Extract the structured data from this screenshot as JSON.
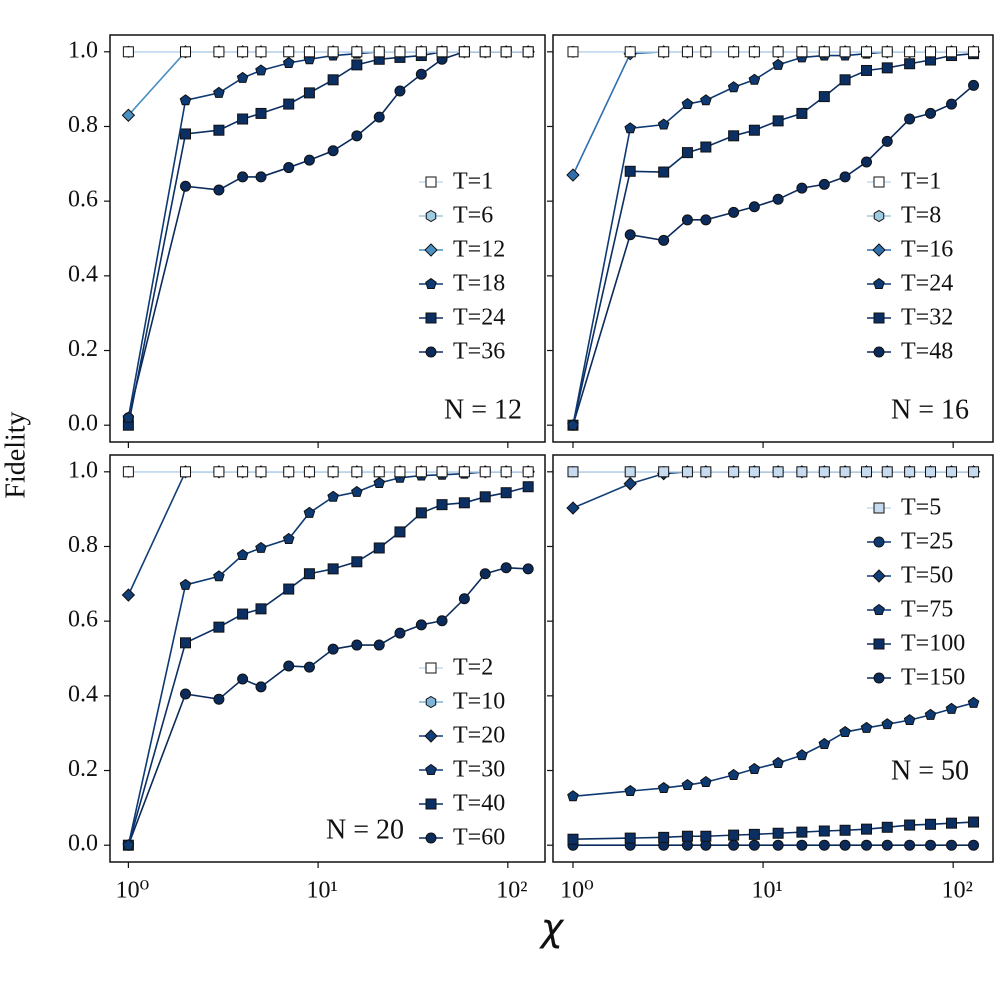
{
  "ylabel": "Fidelity",
  "xlabel": "χ",
  "chart_data": [
    {
      "type": "line",
      "annotation": "N = 12",
      "legend": "center right",
      "xscale": "log",
      "x": [
        1,
        2,
        3,
        4,
        5,
        7,
        9,
        12,
        16,
        21,
        27,
        35,
        45,
        59,
        76,
        98,
        128
      ],
      "xlim": [
        0.8,
        157
      ],
      "xticks": [
        1,
        10,
        100
      ],
      "ylim": [
        -0.045,
        1.045
      ],
      "yticks": [
        {
          "value": 0,
          "label": "0.0"
        },
        {
          "value": 0.2,
          "label": "0.2"
        },
        {
          "value": 0.4,
          "label": "0.4"
        },
        {
          "value": 0.6,
          "label": "0.6"
        },
        {
          "value": 0.8,
          "label": "0.8"
        },
        {
          "value": 1,
          "label": "1.0"
        }
      ],
      "series": [
        {
          "name": "T=1",
          "color": "#c6dbef",
          "markerfacecolor": "#ffffff",
          "marker": "square",
          "values": [
            1,
            1,
            1,
            1,
            1,
            1,
            1,
            1,
            1,
            1,
            1,
            1,
            1,
            1,
            1,
            1,
            1
          ]
        },
        {
          "name": "T=6",
          "color": "#9ecae1",
          "marker": "hexagon",
          "values": [
            1,
            1,
            1,
            1,
            1,
            1,
            1,
            1,
            1,
            1,
            1,
            1,
            1,
            1,
            1,
            1,
            1
          ]
        },
        {
          "name": "T=12",
          "color": "#4a90c2",
          "marker": "diamond",
          "values": [
            0.83,
            1,
            1,
            1,
            1,
            1,
            1,
            1,
            1,
            1,
            1,
            1,
            1,
            1,
            1,
            1,
            1
          ]
        },
        {
          "name": "T=18",
          "color": "#0e3a73",
          "marker": "pentagon",
          "values": [
            0.02,
            0.87,
            0.89,
            0.93,
            0.95,
            0.97,
            0.98,
            0.99,
            0.995,
            1,
            1,
            1,
            1,
            1,
            1,
            1,
            1
          ]
        },
        {
          "name": "T=24",
          "color": "#0b2f63",
          "marker": "square",
          "values": [
            0,
            0.78,
            0.79,
            0.82,
            0.835,
            0.86,
            0.89,
            0.925,
            0.965,
            0.98,
            0.985,
            0.99,
            1,
            1,
            1,
            1,
            1
          ]
        },
        {
          "name": "T=36",
          "color": "#0a2b5c",
          "marker": "circle",
          "values": [
            0.02,
            0.64,
            0.63,
            0.665,
            0.665,
            0.69,
            0.71,
            0.735,
            0.775,
            0.825,
            0.895,
            0.94,
            0.98,
            1,
            1,
            1,
            1
          ]
        }
      ]
    },
    {
      "type": "line",
      "annotation": "N = 16",
      "legend": "center right",
      "xscale": "log",
      "x": [
        1,
        2,
        3,
        4,
        5,
        7,
        9,
        12,
        16,
        21,
        27,
        35,
        45,
        59,
        76,
        98,
        128
      ],
      "xlim": [
        0.785,
        162
      ],
      "xticks": [
        1,
        10,
        100
      ],
      "ylim": [
        -0.045,
        1.045
      ],
      "yticks": [
        0,
        0.2,
        0.4,
        0.6,
        0.8,
        1
      ],
      "series": [
        {
          "name": "T=1",
          "color": "#c6dbef",
          "markerfacecolor": "#ffffff",
          "marker": "square",
          "values": [
            1,
            1,
            1,
            1,
            1,
            1,
            1,
            1,
            1,
            1,
            1,
            1,
            1,
            1,
            1,
            1,
            1
          ]
        },
        {
          "name": "T=8",
          "color": "#9ecae1",
          "marker": "hexagon",
          "values": [
            1,
            1,
            1,
            1,
            1,
            1,
            1,
            1,
            1,
            1,
            1,
            1,
            1,
            1,
            1,
            1,
            1
          ]
        },
        {
          "name": "T=16",
          "color": "#2f6fae",
          "marker": "diamond",
          "values": [
            0.67,
            0.995,
            1,
            1,
            1,
            1,
            1,
            1,
            1,
            1,
            1,
            1,
            1,
            1,
            1,
            1,
            1
          ]
        },
        {
          "name": "T=24",
          "color": "#0e3a73",
          "marker": "pentagon",
          "values": [
            0,
            0.795,
            0.805,
            0.86,
            0.87,
            0.905,
            0.925,
            0.965,
            0.985,
            0.99,
            0.99,
            0.995,
            1,
            1,
            1,
            1,
            1
          ]
        },
        {
          "name": "T=32",
          "color": "#0b2f63",
          "marker": "square",
          "values": [
            0,
            0.68,
            0.678,
            0.73,
            0.745,
            0.775,
            0.79,
            0.815,
            0.835,
            0.88,
            0.925,
            0.95,
            0.957,
            0.968,
            0.978,
            0.99,
            0.995
          ]
        },
        {
          "name": "T=48",
          "color": "#0a2b5c",
          "marker": "circle",
          "values": [
            0,
            0.51,
            0.495,
            0.55,
            0.55,
            0.57,
            0.585,
            0.605,
            0.635,
            0.645,
            0.665,
            0.705,
            0.76,
            0.82,
            0.835,
            0.86,
            0.91
          ]
        }
      ]
    },
    {
      "type": "line",
      "annotation": "N = 20",
      "legend": "lower right",
      "xscale": "log",
      "x": [
        1,
        2,
        3,
        4,
        5,
        7,
        9,
        12,
        16,
        21,
        27,
        35,
        45,
        59,
        76,
        98,
        128
      ],
      "xlim": [
        0.8,
        157
      ],
      "xticks": [
        {
          "value": 1,
          "label": "10⁰"
        },
        {
          "value": 10,
          "label": "10¹"
        },
        {
          "value": 100,
          "label": "10²"
        }
      ],
      "ylim": [
        -0.045,
        1.045
      ],
      "yticks": [
        {
          "value": 0,
          "label": "0.0"
        },
        {
          "value": 0.2,
          "label": "0.2"
        },
        {
          "value": 0.4,
          "label": "0.4"
        },
        {
          "value": 0.6,
          "label": "0.6"
        },
        {
          "value": 0.8,
          "label": "0.8"
        },
        {
          "value": 1,
          "label": "1.0"
        }
      ],
      "series": [
        {
          "name": "T=2",
          "color": "#c6dbef",
          "markerfacecolor": "#ffffff",
          "marker": "square",
          "values": [
            1,
            1,
            1,
            1,
            1,
            1,
            1,
            1,
            1,
            1,
            1,
            1,
            1,
            1,
            1,
            1,
            1
          ]
        },
        {
          "name": "T=10",
          "color": "#7fb3d8",
          "marker": "hexagon",
          "values": [
            1,
            1,
            1,
            1,
            1,
            1,
            1,
            1,
            1,
            1,
            1,
            1,
            1,
            1,
            1,
            1,
            1
          ]
        },
        {
          "name": "T=20",
          "color": "#123f78",
          "marker": "diamond",
          "values": [
            0.67,
            1,
            1,
            1,
            1,
            1,
            1,
            1,
            1,
            1,
            1,
            1,
            1,
            1,
            1,
            1,
            1
          ]
        },
        {
          "name": "T=30",
          "color": "#0e3a73",
          "marker": "pentagon",
          "values": [
            0,
            0.697,
            0.72,
            0.777,
            0.796,
            0.82,
            0.89,
            0.933,
            0.946,
            0.97,
            0.984,
            0.99,
            0.992,
            0.995,
            1,
            1,
            1
          ]
        },
        {
          "name": "T=40",
          "color": "#0b2f63",
          "marker": "square",
          "values": [
            0,
            0.542,
            0.584,
            0.619,
            0.633,
            0.686,
            0.727,
            0.74,
            0.759,
            0.796,
            0.839,
            0.89,
            0.912,
            0.917,
            0.933,
            0.944,
            0.96
          ]
        },
        {
          "name": "T=60",
          "color": "#0a2b5c",
          "marker": "circle",
          "values": [
            0,
            0.405,
            0.391,
            0.445,
            0.424,
            0.48,
            0.477,
            0.525,
            0.536,
            0.536,
            0.568,
            0.59,
            0.601,
            0.66,
            0.727,
            0.743,
            0.74
          ]
        }
      ]
    },
    {
      "type": "line",
      "annotation": "N = 50",
      "legend": "upper right",
      "xscale": "log",
      "x": [
        1,
        2,
        3,
        4,
        5,
        7,
        9,
        12,
        16,
        21,
        27,
        35,
        45,
        59,
        76,
        98,
        128
      ],
      "xlim": [
        0.785,
        162
      ],
      "xticks": [
        {
          "value": 1,
          "label": "10⁰"
        },
        {
          "value": 10,
          "label": "10¹"
        },
        {
          "value": 100,
          "label": "10²"
        }
      ],
      "ylim": [
        -0.045,
        1.045
      ],
      "yticks": [
        0,
        0.2,
        0.4,
        0.6,
        0.8,
        1
      ],
      "series": [
        {
          "name": "T=5",
          "color": "#c6dbef",
          "marker": "square",
          "values": [
            1,
            1,
            1,
            1,
            1,
            1,
            1,
            1,
            1,
            1,
            1,
            1,
            1,
            1,
            1,
            1,
            1
          ]
        },
        {
          "name": "T=25",
          "color": "#0e3a73",
          "marker": "circle",
          "values": [
            1,
            1,
            1,
            1,
            1,
            1,
            1,
            1,
            1,
            1,
            1,
            1,
            1,
            1,
            1,
            1,
            1
          ]
        },
        {
          "name": "T=50",
          "color": "#123f78",
          "marker": "diamond",
          "values": [
            0.903,
            0.968,
            0.995,
            1,
            1,
            1,
            1,
            1,
            1,
            1,
            1,
            1,
            1,
            1,
            1,
            1,
            1
          ]
        },
        {
          "name": "T=75",
          "color": "#0e3a73",
          "marker": "pentagon",
          "values": [
            0.131,
            0.145,
            0.153,
            0.161,
            0.169,
            0.188,
            0.204,
            0.22,
            0.241,
            0.271,
            0.303,
            0.314,
            0.324,
            0.335,
            0.349,
            0.365,
            0.381
          ]
        },
        {
          "name": "T=100",
          "color": "#0b2f63",
          "marker": "square",
          "values": [
            0.016,
            0.019,
            0.021,
            0.024,
            0.024,
            0.027,
            0.029,
            0.032,
            0.035,
            0.038,
            0.04,
            0.043,
            0.048,
            0.054,
            0.056,
            0.059,
            0.062
          ]
        },
        {
          "name": "T=150",
          "color": "#0a2b5c",
          "marker": "circle",
          "values": [
            0,
            0,
            0,
            0,
            0,
            0,
            0,
            0,
            0,
            0,
            0,
            0,
            0,
            0,
            0,
            0,
            0
          ]
        }
      ]
    }
  ]
}
